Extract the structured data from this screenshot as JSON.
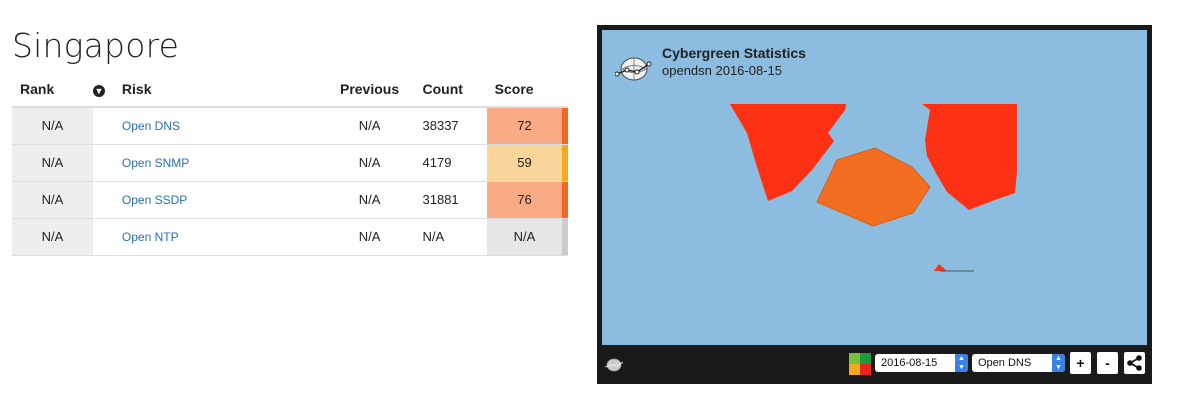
{
  "page": {
    "title": "Singapore"
  },
  "table": {
    "headers": {
      "rank": "Rank",
      "risk": "Risk",
      "previous": "Previous",
      "count": "Count",
      "score": "Score"
    },
    "rows": [
      {
        "rank": "N/A",
        "risk": "Open DNS",
        "previous": "N/A",
        "count": "38337",
        "score": "72",
        "score_bg": "#f8ab85",
        "bar_color": "#f26522"
      },
      {
        "rank": "N/A",
        "risk": "Open SNMP",
        "previous": "N/A",
        "count": "4179",
        "score": "59",
        "score_bg": "#f8d59a",
        "bar_color": "#f7a823"
      },
      {
        "rank": "N/A",
        "risk": "Open SSDP",
        "previous": "N/A",
        "count": "31881",
        "score": "76",
        "score_bg": "#f8ab85",
        "bar_color": "#f26522"
      },
      {
        "rank": "N/A",
        "risk": "Open NTP",
        "previous": "N/A",
        "count": "N/A",
        "score": "N/A",
        "score_bg": "#e6e6e6",
        "bar_color": "#cccccc"
      }
    ]
  },
  "map": {
    "title": "Cybergreen Statistics",
    "subtitle": "opendsn 2016-08-15",
    "date_value": "2016-08-15",
    "risk_value": "Open DNS",
    "zoom_in": "+",
    "zoom_out": "-",
    "colors": {
      "sea": "#8cbde0",
      "land_high": "#fc3012",
      "land_mid": "#f26f22"
    }
  }
}
